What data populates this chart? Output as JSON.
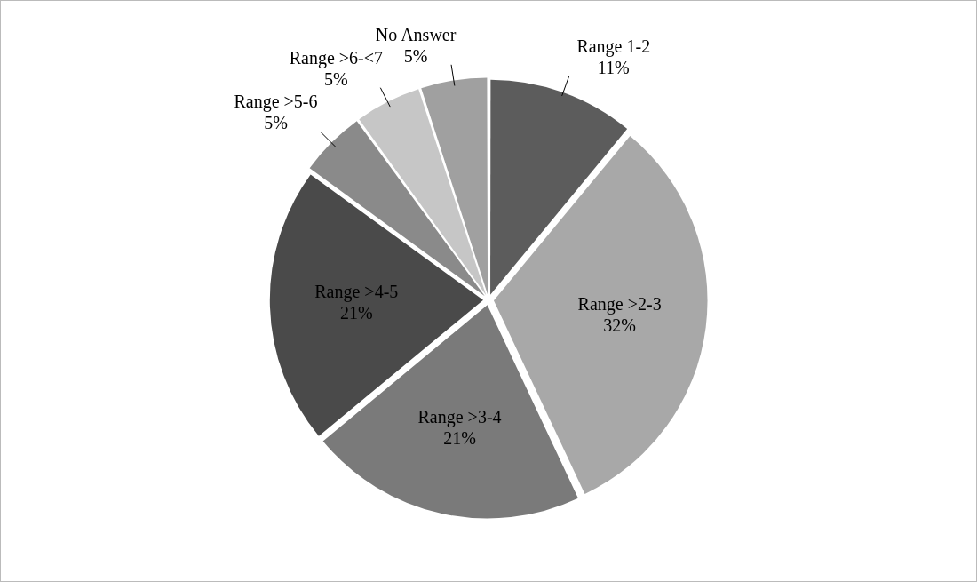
{
  "chart_data": {
    "type": "pie",
    "categories": [
      "Range 1-2",
      "Range >2-3",
      "Range >3-4",
      "Range >4-5",
      "Range >5-6",
      "Range >6-<7",
      "No Answer"
    ],
    "values": [
      11,
      32,
      21,
      21,
      5,
      5,
      5
    ],
    "value_labels": [
      "11%",
      "32%",
      "21%",
      "21%",
      "5%",
      "5%",
      "5%"
    ],
    "colors": [
      "#5c5c5c",
      "#a8a8a8",
      "#7a7a7a",
      "#4a4a4a",
      "#8a8a8a",
      "#c6c6c6",
      "#a0a0a0"
    ],
    "legend": false
  }
}
